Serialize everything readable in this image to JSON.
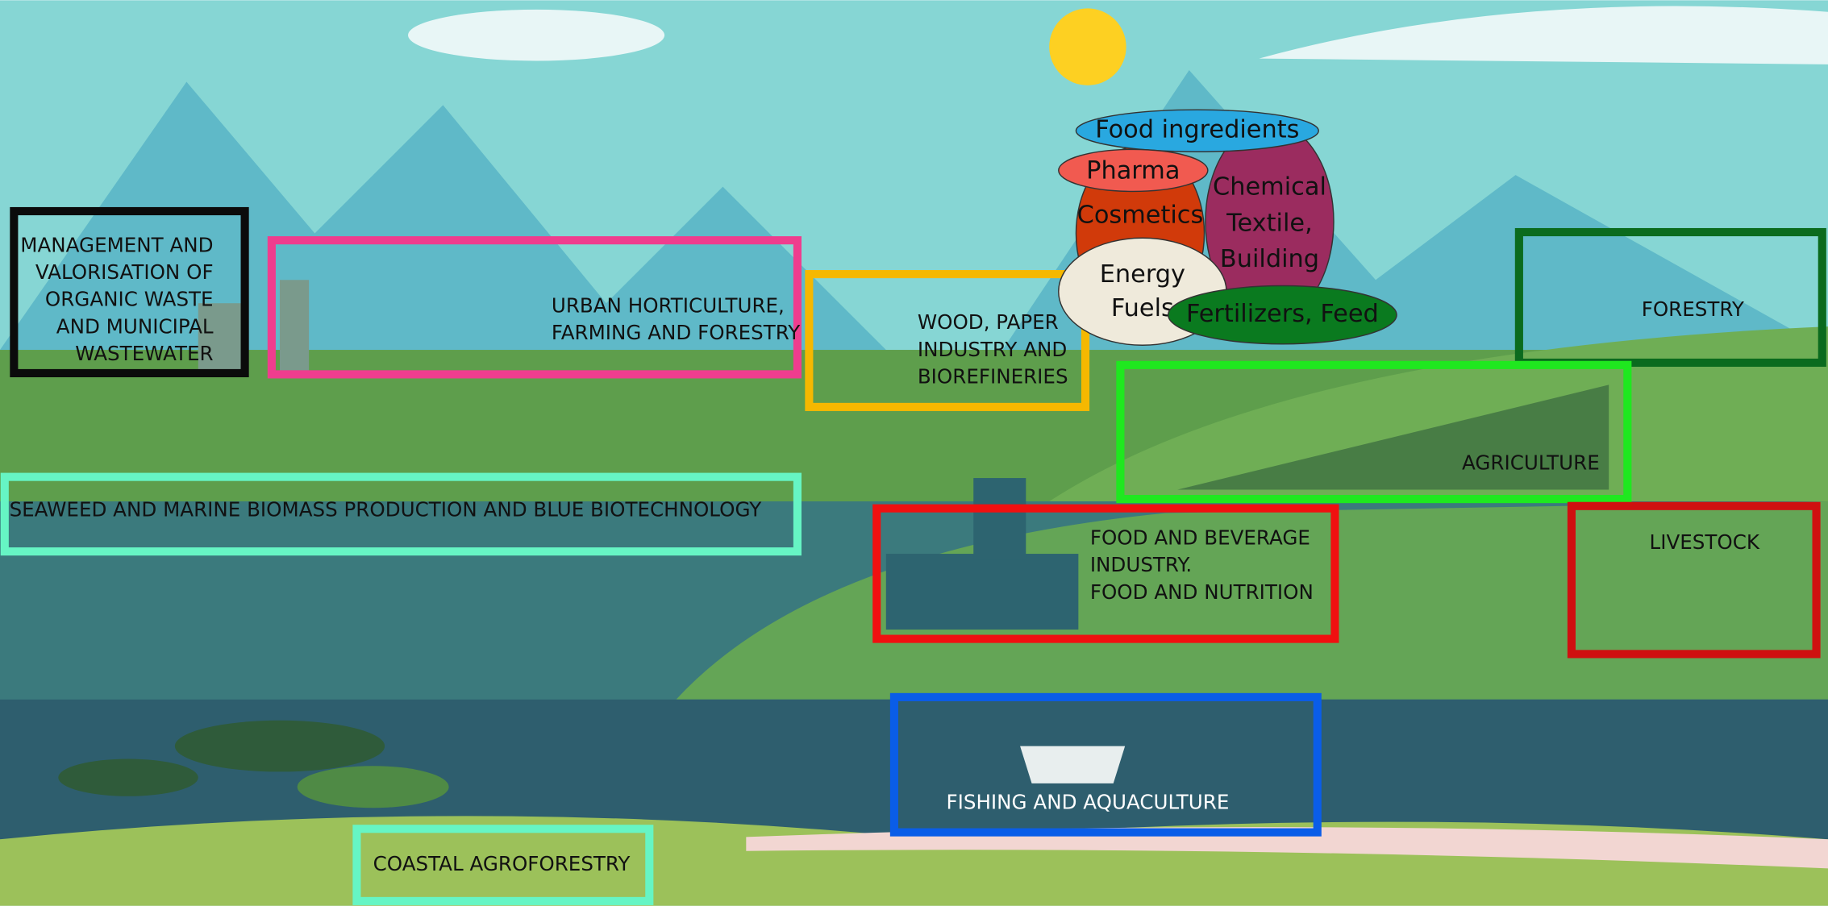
{
  "sectors": [
    {
      "lines": [
        "MANAGEMENT AND",
        "VALORISATION OF",
        "ORGANIC WASTE",
        "AND MUNICIPAL",
        "WASTEWATER"
      ]
    },
    {
      "lines": [
        "URBAN HORTICULTURE,",
        "FARMING AND FORESTRY"
      ]
    },
    {
      "lines": [
        "WOOD, PAPER",
        "INDUSTRY AND",
        "BIOREFINERIES"
      ]
    },
    {
      "lines": [
        "SEAWEED AND MARINE BIOMASS PRODUCTION AND BLUE BIOTECHNOLOGY"
      ]
    },
    {
      "lines": [
        "FORESTRY"
      ]
    },
    {
      "lines": [
        "AGRICULTURE"
      ]
    },
    {
      "lines": [
        "FOOD AND BEVERAGE",
        "INDUSTRY.",
        "FOOD AND NUTRITION"
      ]
    },
    {
      "lines": [
        "LIVESTOCK"
      ]
    },
    {
      "lines": [
        "FISHING AND AQUACULTURE"
      ]
    },
    {
      "lines": [
        "COASTAL AGROFORESTRY"
      ]
    }
  ],
  "products": [
    {
      "lines": [
        "Chemical",
        "Textile,",
        "Building"
      ]
    },
    {
      "lines": [
        "Cosmetics"
      ]
    },
    {
      "lines": [
        "Food ingredients"
      ]
    },
    {
      "lines": [
        "Pharma"
      ]
    },
    {
      "lines": [
        "Energy",
        "Fuels"
      ]
    },
    {
      "lines": [
        "Fertilizers, Feed"
      ]
    }
  ]
}
